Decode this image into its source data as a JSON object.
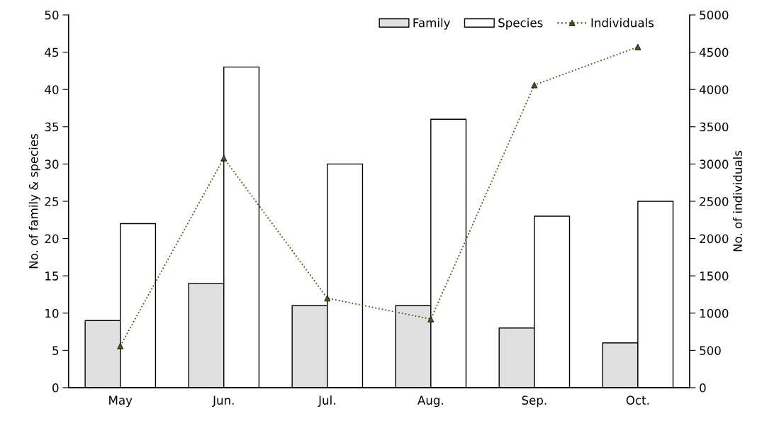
{
  "chart_data": {
    "type": "bar",
    "categories": [
      "May",
      "Jun.",
      "Jul.",
      "Aug.",
      "Sep.",
      "Oct."
    ],
    "series": [
      {
        "name": "Family",
        "color": "#e0e0e0",
        "values": [
          9,
          14,
          11,
          11,
          8,
          6
        ]
      },
      {
        "name": "Species",
        "color": "#ffffff",
        "values": [
          22,
          43,
          30,
          36,
          23,
          25
        ]
      },
      {
        "name": "Individuals",
        "type": "line",
        "axis": "y2",
        "color": "#3d5a1e",
        "marker": "triangle",
        "line_style": "dotted",
        "values": [
          560,
          3080,
          1200,
          920,
          4060,
          4570
        ]
      }
    ],
    "ylabel": "No. of family & species",
    "y2label": "No. of individuals",
    "ylim": [
      0,
      50
    ],
    "yticks": [
      0,
      5,
      10,
      15,
      20,
      25,
      30,
      35,
      40,
      45,
      50
    ],
    "y2lim": [
      0,
      5000
    ],
    "y2ticks": [
      0,
      500,
      1000,
      1500,
      2000,
      2500,
      3000,
      3500,
      4000,
      4500,
      5000
    ],
    "legend": "top right",
    "grid": false
  }
}
